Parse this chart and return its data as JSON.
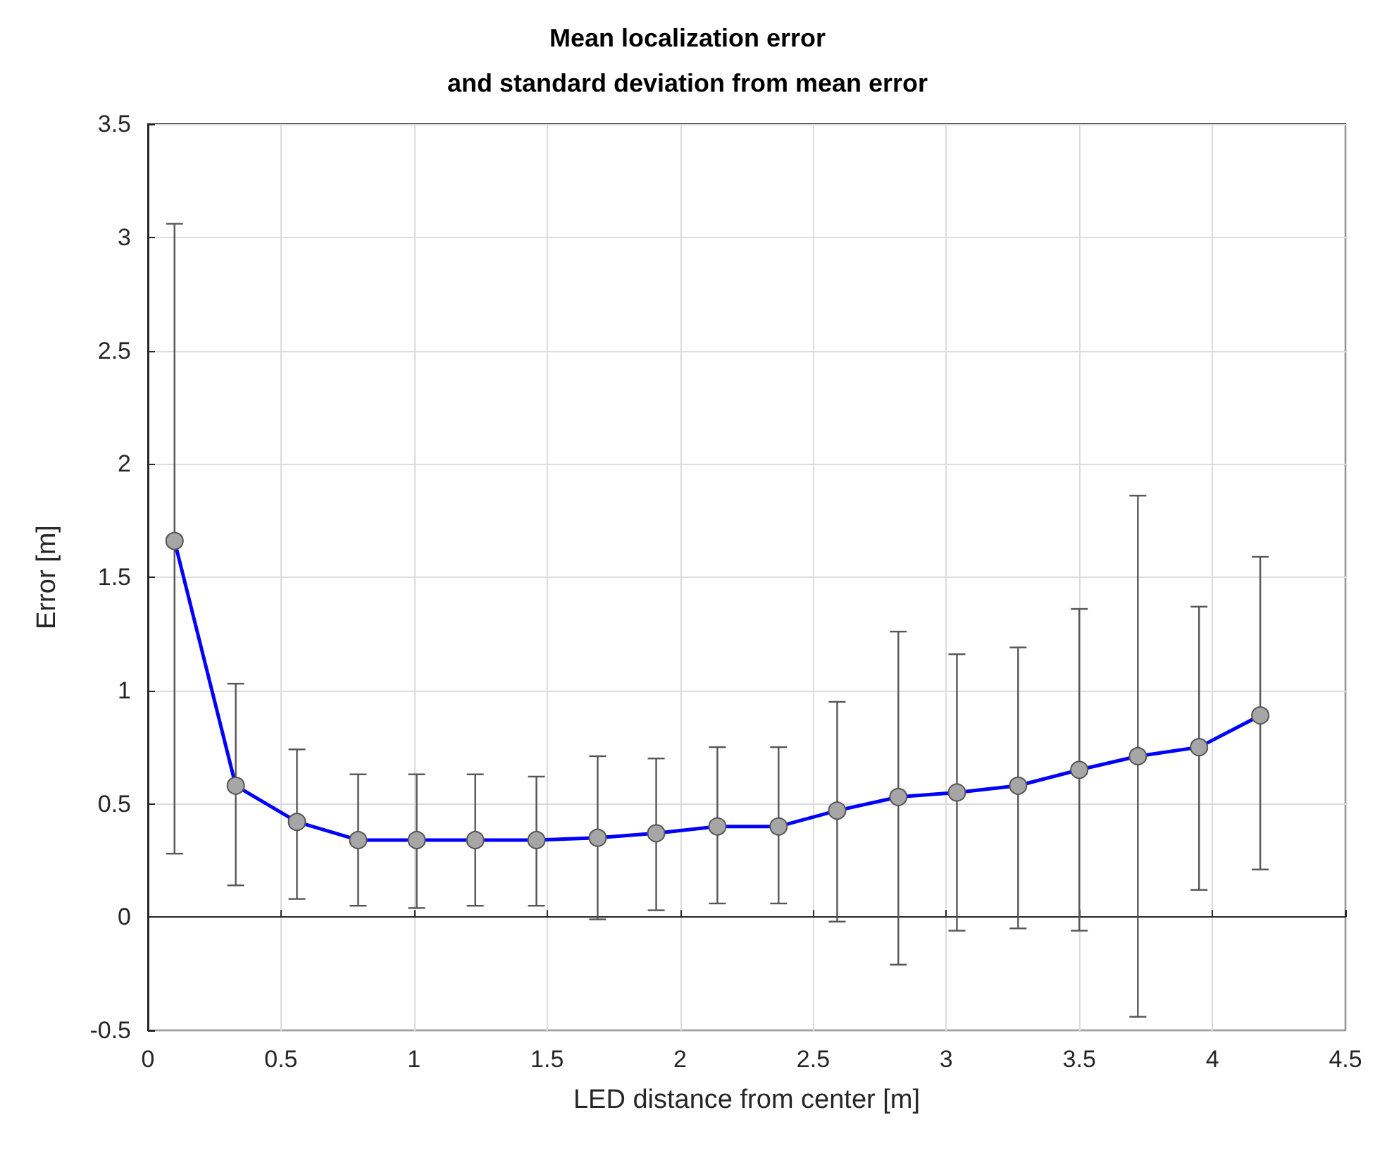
{
  "chart_data": {
    "type": "line",
    "title": "Mean localization error\nand standard deviation from mean error",
    "xlabel": "LED distance from center [m]",
    "ylabel": "Error [m]",
    "x": [
      0.1,
      0.33,
      0.56,
      0.79,
      1.01,
      1.23,
      1.46,
      1.69,
      1.91,
      2.14,
      2.37,
      2.59,
      2.82,
      3.04,
      3.27,
      3.5,
      3.72,
      3.95,
      4.18
    ],
    "series": [
      {
        "color": "#0000ff",
        "values": [
          1.66,
          0.58,
          0.42,
          0.34,
          0.34,
          0.34,
          0.34,
          0.35,
          0.37,
          0.4,
          0.4,
          0.47,
          0.53,
          0.55,
          0.58,
          0.65,
          0.71,
          0.75,
          0.89
        ],
        "errors": [
          [
            0.28,
            3.06
          ],
          [
            0.14,
            1.03
          ],
          [
            0.08,
            0.74
          ],
          [
            0.05,
            0.63
          ],
          [
            0.04,
            0.63
          ],
          [
            0.05,
            0.63
          ],
          [
            0.05,
            0.62
          ],
          [
            -0.01,
            0.71
          ],
          [
            0.03,
            0.7
          ],
          [
            0.06,
            0.75
          ],
          [
            0.06,
            0.75
          ],
          [
            -0.02,
            0.95
          ],
          [
            -0.21,
            1.26
          ],
          [
            -0.06,
            1.16
          ],
          [
            -0.05,
            1.19
          ],
          [
            -0.06,
            1.36
          ],
          [
            -0.44,
            1.86
          ],
          [
            0.12,
            1.37
          ],
          [
            0.21,
            1.59
          ]
        ]
      }
    ],
    "xlim": [
      0,
      4.5
    ],
    "xticks": [
      0,
      0.5,
      1,
      1.5,
      2,
      2.5,
      3,
      3.5,
      4,
      4.5
    ],
    "ylim": [
      -0.5,
      3.5
    ],
    "yticks": [
      -0.5,
      0,
      0.5,
      1,
      1.5,
      2,
      2.5,
      3,
      3.5
    ],
    "grid": true,
    "marker": "circle",
    "line_style": "solid"
  }
}
